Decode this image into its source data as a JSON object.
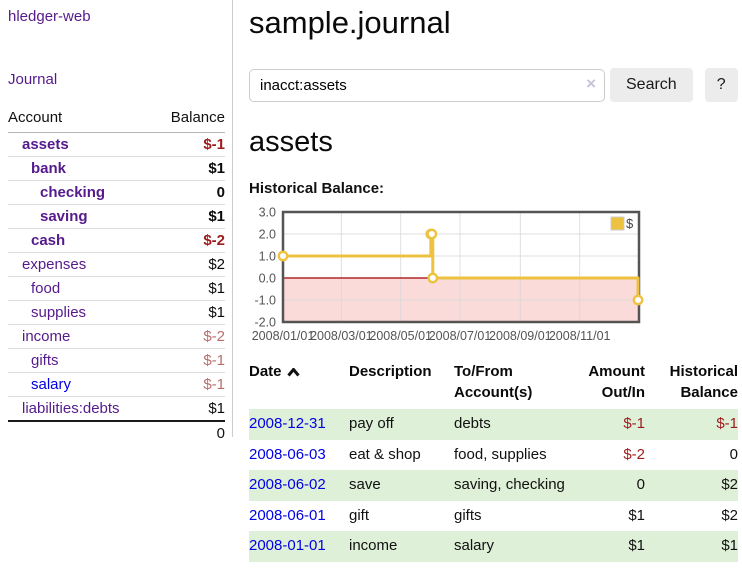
{
  "sidebar": {
    "brand": "hledger-web",
    "journal_link": "Journal",
    "accounts": {
      "header_account": "Account",
      "header_balance": "Balance",
      "rows": [
        {
          "name": "assets",
          "level": 1,
          "bold": true,
          "balance": "$-1",
          "style": "neg"
        },
        {
          "name": "bank",
          "level": 2,
          "bold": true,
          "balance": "$1",
          "style": "pos"
        },
        {
          "name": "checking",
          "level": 3,
          "bold": true,
          "balance": "0",
          "style": "pos"
        },
        {
          "name": "saving",
          "level": 3,
          "bold": true,
          "balance": "$1",
          "style": "pos"
        },
        {
          "name": "cash",
          "level": 2,
          "bold": true,
          "balance": "$-2",
          "style": "neg"
        },
        {
          "name": "expenses",
          "level": 1,
          "bold": false,
          "balance": "$2",
          "style": "pos"
        },
        {
          "name": "food",
          "level": 2,
          "bold": false,
          "balance": "$1",
          "style": "pos"
        },
        {
          "name": "supplies",
          "level": 2,
          "bold": false,
          "balance": "$1",
          "style": "pos"
        },
        {
          "name": "income",
          "level": 1,
          "bold": false,
          "balance": "$-2",
          "style": "negm"
        },
        {
          "name": "gifts",
          "level": 2,
          "bold": false,
          "balance": "$-1",
          "style": "negm"
        },
        {
          "name": "salary",
          "level": 2,
          "bold": false,
          "balance": "$-1",
          "style": "negm",
          "link": "unvisited"
        },
        {
          "name": "liabilities:debts",
          "level": 1,
          "bold": false,
          "balance": "$1",
          "style": "pos"
        }
      ],
      "total": "0"
    }
  },
  "header": {
    "title": "sample.journal"
  },
  "search": {
    "value": "inacct:assets",
    "clear_icon": "×",
    "button_label": "Search",
    "help_label": "?"
  },
  "register": {
    "heading": "assets",
    "chart_label": "Historical Balance:",
    "headers": {
      "date": "Date",
      "sort_icon": "chevron-up-icon",
      "description": "Description",
      "tofrom": "To/From Account(s)",
      "amount": "Amount Out/In",
      "balance": "Historical Balance"
    },
    "rows": [
      {
        "date": "2008-12-31",
        "description": "pay off",
        "accounts": "debts",
        "amount": "$-1",
        "amount_neg": true,
        "balance": "$-1",
        "balance_neg": true
      },
      {
        "date": "2008-06-03",
        "description": "eat & shop",
        "accounts": "food, supplies",
        "amount": "$-2",
        "amount_neg": true,
        "balance": "0",
        "balance_neg": false
      },
      {
        "date": "2008-06-02",
        "description": "save",
        "accounts": "saving, checking",
        "amount": "0",
        "amount_neg": false,
        "balance": "$2",
        "balance_neg": false
      },
      {
        "date": "2008-06-01",
        "description": "gift",
        "accounts": "gifts",
        "amount": "$1",
        "amount_neg": false,
        "balance": "$2",
        "balance_neg": false
      },
      {
        "date": "2008-01-01",
        "description": "income",
        "accounts": "salary",
        "amount": "$1",
        "amount_neg": false,
        "balance": "$1",
        "balance_neg": false
      }
    ]
  },
  "chart_data": {
    "type": "line-step",
    "title": "Historical Balance",
    "xdomain": [
      "2008-01-01",
      "2009-01-01"
    ],
    "ylim": [
      -2,
      3
    ],
    "yticks": [
      "3.0",
      "2.0",
      "1.0",
      "0.0",
      "-1.0",
      "-2.0"
    ],
    "xticks": [
      "2008/01/01",
      "2008/03/01",
      "2008/05/01",
      "2008/07/01",
      "2008/09/01",
      "2008/11/01"
    ],
    "series": [
      {
        "name": "$",
        "color": "#edc240",
        "points": [
          [
            "2008-01-01",
            1
          ],
          [
            "2008-06-01",
            2
          ],
          [
            "2008-06-02",
            2
          ],
          [
            "2008-06-03",
            0
          ],
          [
            "2008-12-31",
            -1
          ]
        ]
      }
    ],
    "legend": {
      "label": "$",
      "position": "top-right"
    },
    "grid": true,
    "zero_line_color": "#a40000",
    "negative_region_color": "#fbdada",
    "border_color": "#545454",
    "grid_color": "#d8d8d8",
    "tick_label_color": "#545454"
  },
  "colors": {
    "link_visited": "#551a8b",
    "link_unvisited": "#0000e6",
    "negative_strong": "#9c1c1c",
    "negative_muted": "#b86e6e",
    "row_stripe_green": "#dff0d8",
    "chart_series_gold": "#edc240"
  }
}
